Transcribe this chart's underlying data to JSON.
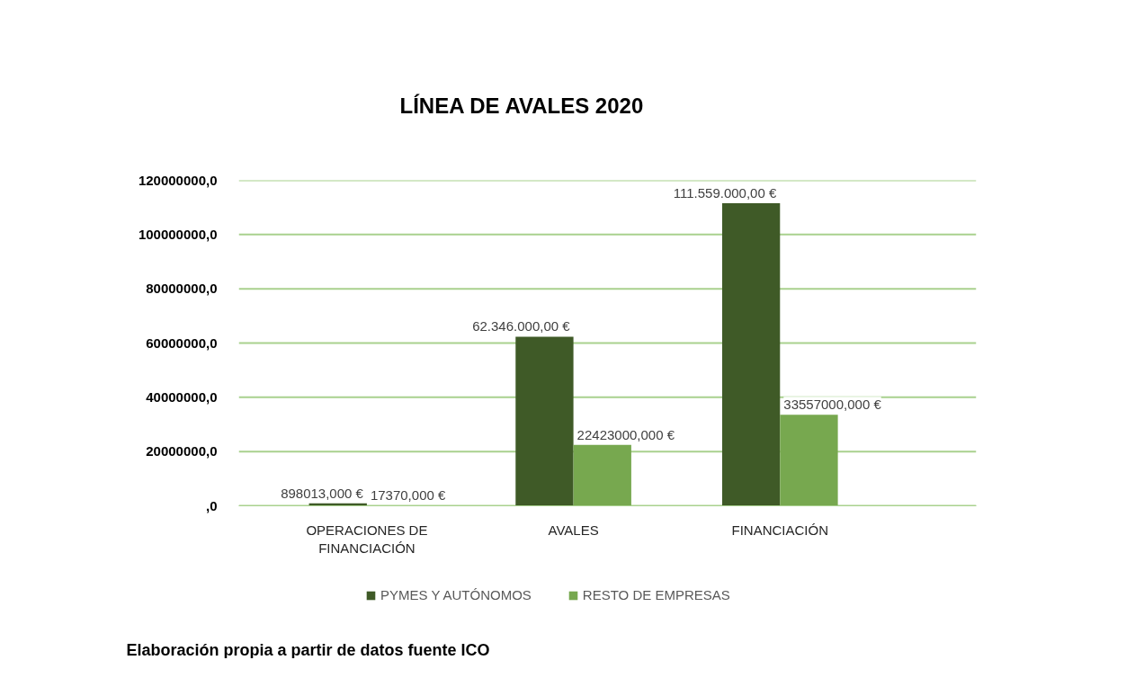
{
  "chart_data": {
    "type": "bar",
    "title": "LÍNEA DE AVALES 2020",
    "categories": [
      "OPERACIONES DE FINANCIACIÓN",
      "AVALES",
      "FINANCIACIÓN"
    ],
    "series": [
      {
        "name": "PYMES Y AUTÓNOMOS",
        "color": "#3f5a27",
        "values": [
          898013,
          62346000,
          111559000
        ],
        "value_labels": [
          "898013,000 €",
          "62.346.000,00 €",
          "111.559.000,00 €"
        ]
      },
      {
        "name": "RESTO DE EMPRESAS",
        "color": "#77a84f",
        "values": [
          17370,
          22423000,
          33557000
        ],
        "value_labels": [
          "17370,000 €",
          "22423000,000 €",
          "33557000,000 €"
        ]
      }
    ],
    "ylim": [
      0,
      120000000
    ],
    "yticks": [
      {
        "value": 0,
        "label": ",0"
      },
      {
        "value": 20000000,
        "label": "20000000,0"
      },
      {
        "value": 40000000,
        "label": "40000000,0"
      },
      {
        "value": 60000000,
        "label": "60000000,0"
      },
      {
        "value": 80000000,
        "label": "80000000,0"
      },
      {
        "value": 100000000,
        "label": "100000000,0"
      },
      {
        "value": 120000000,
        "label": "120000000,0"
      }
    ],
    "grid": "y",
    "legend": "bottom",
    "annotations": [
      "Elaboración propia a partir de datos fuente ICO"
    ]
  }
}
